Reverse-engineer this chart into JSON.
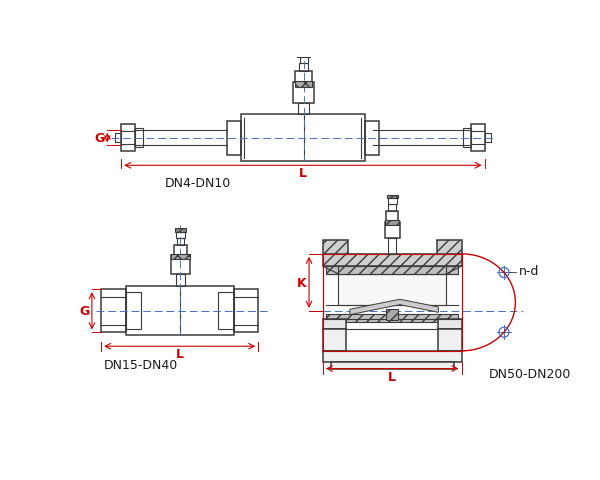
{
  "bg_color": "#ffffff",
  "line_color": "#3a3a3a",
  "dim_color": "#cc0000",
  "blue_line_color": "#4472c4",
  "text_color": "#1a1a1a",
  "label_DN4": "DN4-DN10",
  "label_DN15": "DN15-DN40",
  "label_DN50": "DN50-DN200",
  "dim_L": "L",
  "dim_G": "G",
  "dim_K": "K",
  "dim_nd": "n-d"
}
